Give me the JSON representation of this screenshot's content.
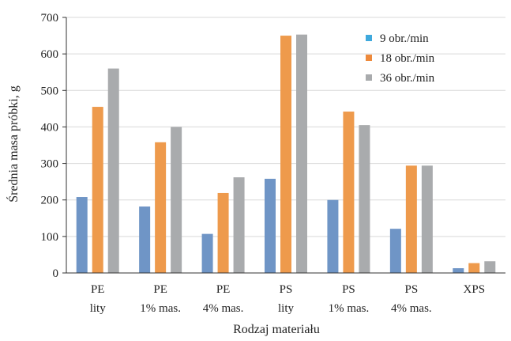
{
  "chart_data": {
    "type": "bar",
    "title": "",
    "xlabel": "Rodzaj materiału",
    "ylabel": "Średnia masa próbki, g",
    "ylim": [
      0,
      700
    ],
    "yticks": [
      0,
      100,
      200,
      300,
      400,
      500,
      600,
      700
    ],
    "grid": true,
    "legend_position": "top-right",
    "categories": [
      [
        "PE",
        "lity"
      ],
      [
        "PE",
        "1% mas."
      ],
      [
        "PE",
        "4% mas."
      ],
      [
        "PS",
        "lity"
      ],
      [
        "PS",
        "1% mas."
      ],
      [
        "PS",
        "4% mas."
      ],
      [
        "XPS",
        ""
      ]
    ],
    "series": [
      {
        "name": "9 obr./min",
        "color": "#6f95c6",
        "legend_color": "#3fa9dd",
        "values": [
          208,
          182,
          107,
          258,
          200,
          121,
          13
        ]
      },
      {
        "name": "18 obr./min",
        "color": "#ee9a4c",
        "legend_color": "#ee8a3c",
        "values": [
          455,
          358,
          219,
          650,
          442,
          294,
          27
        ]
      },
      {
        "name": "36 obr./min",
        "color": "#a9abad",
        "legend_color": "#a9abad",
        "values": [
          560,
          400,
          262,
          653,
          405,
          294,
          32
        ]
      }
    ]
  }
}
